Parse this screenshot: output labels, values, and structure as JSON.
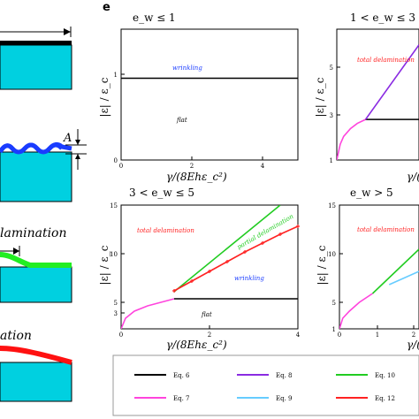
{
  "panel_label": "e",
  "colors": {
    "eq6": "#000000",
    "eq7": "#ff44dd",
    "eq8": "#8a2be2",
    "eq9": "#66ccff",
    "eq10": "#22cc22",
    "eq12": "#ff2222",
    "substrate": "#00d0e0",
    "wave": "#1a3cff",
    "film_red": "#ff1111",
    "film_green": "#22ee22"
  },
  "left_column": {
    "label_A": "A",
    "text_lamination": "lamination",
    "text_ation": "ation"
  },
  "chart_data": [
    {
      "type": "line",
      "title": "e_w ≤ 1",
      "xlabel": "γ/(8Ehε_c²)",
      "ylabel": "|ε| / ε_c",
      "xlim": [
        0,
        5
      ],
      "ylim": [
        0,
        1.6
      ],
      "xticks": [
        "0",
        "2",
        "4"
      ],
      "yticks": [
        "0",
        "1"
      ],
      "annotations": [
        {
          "text": "wrinkling",
          "color": "#1a3cff"
        },
        {
          "text": "flat",
          "color": "#000000"
        }
      ],
      "series": [
        {
          "name": "Eq. 6",
          "x": [
            0,
            5
          ],
          "y": [
            1,
            1
          ]
        }
      ]
    },
    {
      "type": "line",
      "title": "1 < e_w ≤ 3",
      "xlabel": "γ/(",
      "ylabel": "|ε| / ε_c",
      "xlim": [
        0,
        1.2
      ],
      "ylim": [
        1,
        6
      ],
      "yticks": [
        "1",
        "3",
        "5"
      ],
      "annotations": [
        {
          "text": "total delamination",
          "color": "#ff2222"
        }
      ],
      "series": [
        {
          "name": "Eq. 7",
          "x": [
            0,
            0.05,
            0.1,
            0.2,
            0.3,
            0.42
          ],
          "y": [
            1,
            1.6,
            1.9,
            2.2,
            2.4,
            2.55
          ]
        },
        {
          "name": "Eq. 6",
          "x": [
            0.42,
            1.2
          ],
          "y": [
            2.55,
            2.55
          ]
        },
        {
          "name": "Eq. 8",
          "x": [
            0.42,
            1.2
          ],
          "y": [
            2.55,
            5.4
          ]
        }
      ]
    },
    {
      "type": "line",
      "title": "3 < e_w ≤ 5",
      "xlabel": "γ/(8Ehε_c²)",
      "ylabel": "|ε| / ε_c",
      "xlim": [
        0,
        4
      ],
      "ylim": [
        1,
        15
      ],
      "xticks": [
        "0",
        "2",
        "4"
      ],
      "yticks": [
        "3",
        "5",
        "10",
        "15"
      ],
      "annotations": [
        {
          "text": "total delamination",
          "color": "#ff2222"
        },
        {
          "text": "partial delamination",
          "color": "#22cc22"
        },
        {
          "text": "wrinkling",
          "color": "#1a3cff"
        },
        {
          "text": "flat",
          "color": "#000000"
        }
      ],
      "series": [
        {
          "name": "Eq. 7",
          "x": [
            0,
            0.1,
            0.3,
            0.6,
            0.9,
            1.2
          ],
          "y": [
            1,
            2.2,
            3,
            3.6,
            4,
            4.4
          ]
        },
        {
          "name": "Eq. 6",
          "x": [
            1.2,
            4
          ],
          "y": [
            4.4,
            4.4
          ]
        },
        {
          "name": "Eq. 10",
          "x": [
            1.2,
            3.6
          ],
          "y": [
            5.2,
            15
          ]
        },
        {
          "name": "Eq. 12",
          "x": [
            1.2,
            1.6,
            2.0,
            2.4,
            2.8,
            3.2,
            3.6,
            4.0
          ],
          "y": [
            5.3,
            6.4,
            7.5,
            8.6,
            9.7,
            10.7,
            11.7,
            12.6
          ]
        }
      ]
    },
    {
      "type": "line",
      "title": "e_w > 5",
      "xlabel": "γ/(",
      "ylabel": "|ε| / ε_c",
      "xlim": [
        0,
        2.4
      ],
      "ylim": [
        1,
        15
      ],
      "xticks": [
        "0",
        "1",
        "2"
      ],
      "yticks": [
        "1",
        "5",
        "10",
        "15"
      ],
      "annotations": [
        {
          "text": "total delamination",
          "color": "#ff2222"
        }
      ],
      "series": [
        {
          "name": "Eq. 7",
          "x": [
            0,
            0.1,
            0.3,
            0.6,
            1.0
          ],
          "y": [
            1,
            2.2,
            3,
            4,
            5
          ]
        },
        {
          "name": "Eq. 10",
          "x": [
            1.0,
            2.4
          ],
          "y": [
            5,
            10
          ]
        },
        {
          "name": "Eq. 9",
          "x": [
            1.5,
            2.4
          ],
          "y": [
            6,
            7.5
          ]
        }
      ]
    }
  ],
  "legend": [
    {
      "label": "Eq. 6",
      "color": "#000000"
    },
    {
      "label": "Eq. 8",
      "color": "#8a2be2"
    },
    {
      "label": "Eq. 10",
      "color": "#22cc22"
    },
    {
      "label": "Eq. 7",
      "color": "#ff44dd"
    },
    {
      "label": "Eq. 9",
      "color": "#66ccff"
    },
    {
      "label": "Eq. 12",
      "color": "#ff2222"
    }
  ]
}
